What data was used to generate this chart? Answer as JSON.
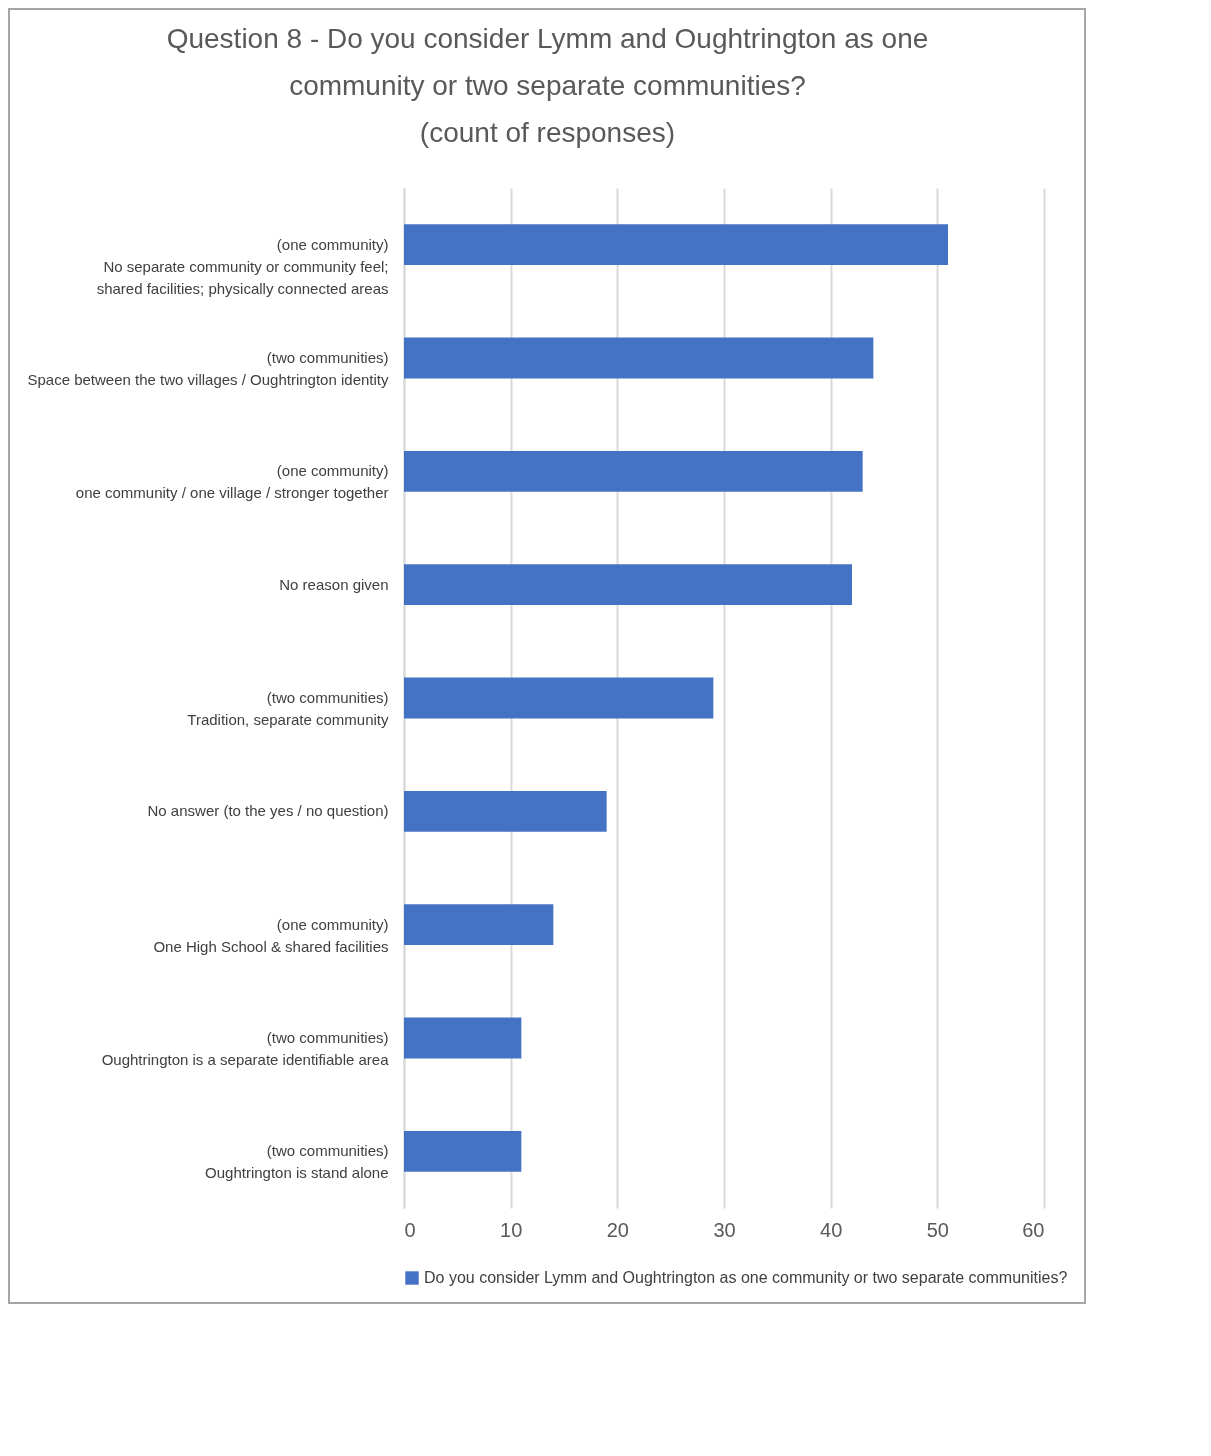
{
  "chart_data": {
    "type": "bar",
    "orientation": "horizontal",
    "title": "Question 8 - Do you consider Lymm and Oughtrington as one\ncommunity or two separate communities?\n(count of responses)",
    "categories": [
      "(one community)\nNo separate community or community feel;\nshared facilities; physically connected areas",
      "(two communities)\nSpace between the two villages / Oughtrington identity",
      "(one community)\none community / one village / stronger together",
      "No reason given",
      "(two communities)\nTradition, separate community",
      "No answer (to the yes / no question)",
      "(one community)\nOne High School & shared facilities",
      "(two communities)\nOughtrington is a separate identifiable area",
      "(two communities)\nOughtrington is stand alone"
    ],
    "series": [
      {
        "name": "Do you consider Lymm and Oughtrington as one community or two separate communities?",
        "color": "#4472c4",
        "values": [
          51,
          44,
          43,
          42,
          29,
          19,
          14,
          11,
          11
        ]
      }
    ],
    "xlim": [
      0,
      60
    ],
    "xticks": [
      0,
      10,
      20,
      30,
      40,
      50,
      60
    ],
    "grid": "x",
    "legend": "bottom"
  }
}
